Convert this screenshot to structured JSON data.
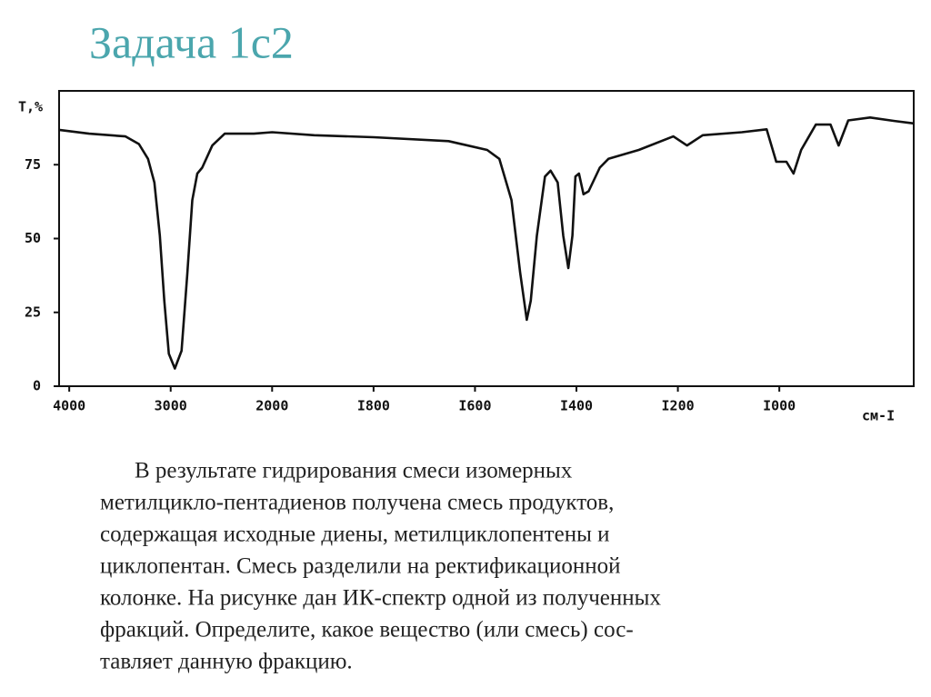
{
  "slide": {
    "title": "Задача 1с2",
    "text": [
      "В результате гидрирования смеси изомерных",
      "метилцикло-пентадиенов получена смесь продуктов,",
      "содержащая исходные диены, метилциклопентены и",
      "циклопентан. Смесь разделили на ректификационной",
      "колонке. На рисунке дан ИК-спектр одной из полученных",
      "фракций. Определите, какое вещество (или смесь) сос-",
      "тавляет данную фракцию."
    ]
  },
  "chart_data": {
    "type": "line",
    "y_label": "T,%",
    "x_label": "см-I",
    "x": [
      4100,
      3804,
      3446,
      3313,
      3223,
      3161,
      3107,
      3063,
      3018,
      2959,
      2893,
      2836,
      2787,
      2738,
      2689,
      2590,
      2467,
      2180,
      2000,
      1917,
      1800,
      1652,
      1576,
      1552,
      1528,
      1511,
      1498,
      1490,
      1478,
      1462,
      1451,
      1437,
      1426,
      1416,
      1408,
      1402,
      1395,
      1386,
      1376,
      1354,
      1337,
      1277,
      1209,
      1182,
      1151,
      1074,
      1025,
      1006,
      986,
      972,
      957,
      928,
      899,
      883,
      864,
      821,
      773,
      735
    ],
    "values": [
      86.8,
      85.5,
      84.6,
      82,
      77,
      69,
      51,
      29,
      11,
      6,
      12,
      38,
      63,
      72,
      74,
      81.5,
      85.5,
      85.5,
      86,
      85,
      84.3,
      83,
      80,
      77,
      63,
      38.5,
      22.5,
      29,
      51,
      71,
      73,
      69,
      51,
      40,
      51,
      71,
      72,
      65,
      66,
      74,
      77,
      80,
      84.6,
      81.5,
      85,
      86,
      87,
      76,
      76,
      72,
      80,
      88.6,
      88.6,
      81.5,
      90,
      91,
      89.8,
      89
    ],
    "color": "#111111",
    "xlim": [
      4100,
      735
    ],
    "xticks": [
      4000,
      3000,
      2000,
      {
        "value": 1800,
        "label": "I800"
      },
      {
        "value": 1600,
        "label": "I600"
      },
      {
        "value": 1400,
        "label": "I400"
      },
      {
        "value": 1200,
        "label": "I200"
      },
      {
        "value": 1000,
        "label": "I000"
      }
    ],
    "ylim": [
      0,
      100
    ],
    "yticks": [
      0,
      25,
      50,
      75
    ],
    "grid": false
  }
}
